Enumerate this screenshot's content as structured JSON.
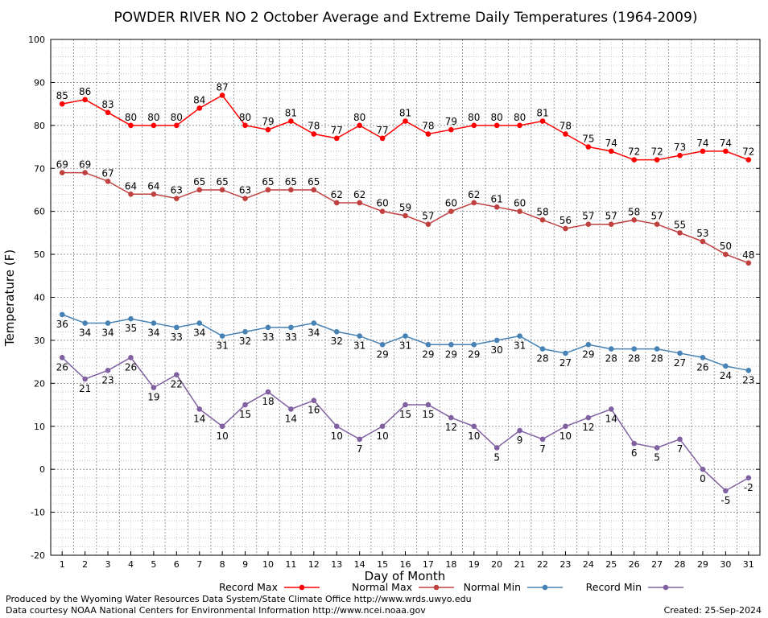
{
  "chart_data": {
    "type": "line",
    "title": "POWDER RIVER NO 2 October Average and Extreme Daily Temperatures (1964-2009)",
    "xlabel": "Day of Month",
    "ylabel": "Temperature (F)",
    "xlim": [
      1,
      31
    ],
    "ylim": [
      -20,
      100
    ],
    "y_ticks": [
      -20,
      -10,
      0,
      10,
      20,
      30,
      40,
      50,
      60,
      70,
      80,
      90,
      100
    ],
    "x": [
      1,
      2,
      3,
      4,
      5,
      6,
      7,
      8,
      9,
      10,
      11,
      12,
      13,
      14,
      15,
      16,
      17,
      18,
      19,
      20,
      21,
      22,
      23,
      24,
      25,
      26,
      27,
      28,
      29,
      30,
      31
    ],
    "grid": true,
    "legend_position": "bottom",
    "series": [
      {
        "name": "Record Max",
        "color": "#ff0000",
        "label_position": "above",
        "values": [
          85,
          86,
          83,
          80,
          80,
          80,
          84,
          87,
          80,
          79,
          81,
          78,
          77,
          80,
          77,
          81,
          78,
          79,
          80,
          80,
          80,
          81,
          78,
          75,
          74,
          72,
          72,
          73,
          74,
          74,
          72
        ]
      },
      {
        "name": "Normal Max",
        "color": "#c04040",
        "label_position": "above",
        "values": [
          69,
          69,
          67,
          64,
          64,
          63,
          65,
          65,
          63,
          65,
          65,
          65,
          62,
          62,
          60,
          59,
          57,
          60,
          62,
          61,
          60,
          58,
          56,
          57,
          57,
          58,
          57,
          55,
          53,
          50,
          48
        ]
      },
      {
        "name": "Normal Min",
        "color": "#4682b4",
        "label_position": "below",
        "values": [
          36,
          34,
          34,
          35,
          34,
          33,
          34,
          31,
          32,
          33,
          33,
          34,
          32,
          31,
          29,
          31,
          29,
          29,
          29,
          30,
          31,
          28,
          27,
          29,
          28,
          28,
          28,
          27,
          26,
          24,
          23
        ]
      },
      {
        "name": "Record Min",
        "color": "#8060a0",
        "label_position": "below",
        "values": [
          26,
          21,
          23,
          26,
          19,
          22,
          14,
          10,
          15,
          18,
          14,
          16,
          10,
          7,
          10,
          15,
          15,
          12,
          10,
          5,
          9,
          7,
          10,
          12,
          14,
          6,
          5,
          7,
          0,
          -5,
          -2
        ]
      }
    ]
  },
  "footer": {
    "produced_by": "Produced by the Wyoming Water Resources Data System/State Climate Office http://www.wrds.uwyo.edu",
    "data_courtesy": "Data courtesy NOAA National Centers for Environmental Information http://www.ncei.noaa.gov",
    "created": "Created:  25-Sep-2024"
  }
}
